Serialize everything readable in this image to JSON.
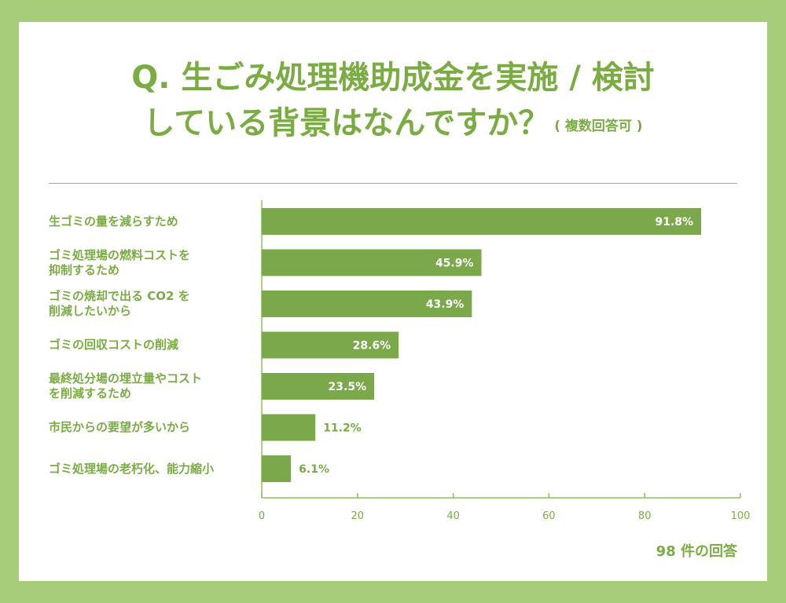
{
  "title": {
    "line1": "Q. 生ごみ処理機助成金を実施 / 検討",
    "line2": "している背景はなんですか？",
    "note": "( 複数回答可 )"
  },
  "footer": "98 件の回答",
  "colors": {
    "accent": "#7aac43",
    "bar": "#7aa84a",
    "frame": "#a8cd7a"
  },
  "chart_data": {
    "type": "bar",
    "orientation": "horizontal",
    "categories": [
      "生ゴミの量を減らすため",
      "ゴミ処理場の燃料コストを\n抑制するため",
      "ゴミの焼却で出る CO2 を\n削減したいから",
      "ゴミの回収コストの削減",
      "最終処分場の埋立量やコスト\nを削減するため",
      "市民からの要望が多いから",
      "ゴミ処理場の老朽化、能力縮小"
    ],
    "values": [
      91.8,
      45.9,
      43.9,
      28.6,
      23.5,
      11.2,
      6.1
    ],
    "value_labels": [
      "91.8%",
      "45.9%",
      "43.9%",
      "28.6%",
      "23.5%",
      "11.2%",
      "6.1%"
    ],
    "xlim": [
      0,
      100
    ],
    "ticks": [
      "0",
      "20",
      "40",
      "60",
      "80",
      "100"
    ],
    "grid": false
  }
}
